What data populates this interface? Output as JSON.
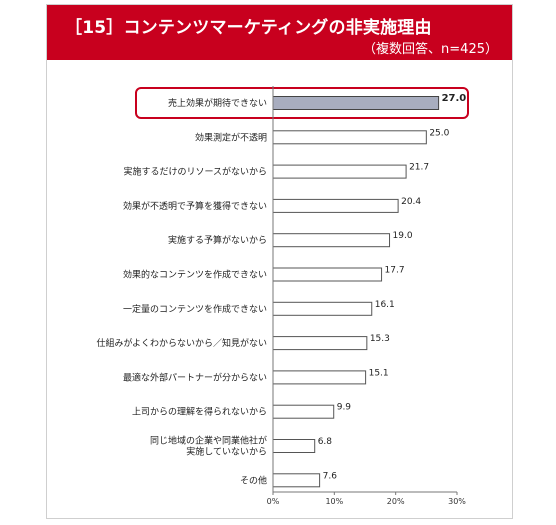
{
  "header": {
    "title": "［15］コンテンツマーケティングの非実施理由",
    "subtitle": "（複数回答、n=425）",
    "bg_color": "#c8001e"
  },
  "chart_data": {
    "type": "bar",
    "orientation": "horizontal",
    "categories": [
      [
        "売上効果が期待できない"
      ],
      [
        "効果測定が不透明"
      ],
      [
        "実施するだけのリソースがないから"
      ],
      [
        "効果が不透明で予算を獲得できない"
      ],
      [
        "実施する予算がないから"
      ],
      [
        "効果的なコンテンツを作成できない"
      ],
      [
        "一定量のコンテンツを作成できない"
      ],
      [
        "仕組みがよくわからないから／知見がない"
      ],
      [
        "最適な外部パートナーが分からない"
      ],
      [
        "上司からの理解を得られないから"
      ],
      [
        "同じ地域の企業や同業他社が",
        "実施していないから"
      ],
      [
        "その他"
      ]
    ],
    "values": [
      27.0,
      25.0,
      21.7,
      20.4,
      19.0,
      17.7,
      16.1,
      15.3,
      15.1,
      9.9,
      6.8,
      7.6
    ],
    "value_labels": [
      "27.0",
      "25.0",
      "21.7",
      "20.4",
      "19.0",
      "17.7",
      "16.1",
      "15.3",
      "15.1",
      "9.9",
      "6.8",
      "7.6"
    ],
    "highlight_index": 0,
    "xlim": [
      0,
      30
    ],
    "xticks": [
      0,
      10,
      20,
      30
    ],
    "xtick_labels": [
      "0%",
      "10%",
      "20%",
      "30%"
    ],
    "bar_color": "#ffffff",
    "highlight_color": "#a8adbf",
    "highlight_border_color": "#c8001e",
    "grid": false
  }
}
